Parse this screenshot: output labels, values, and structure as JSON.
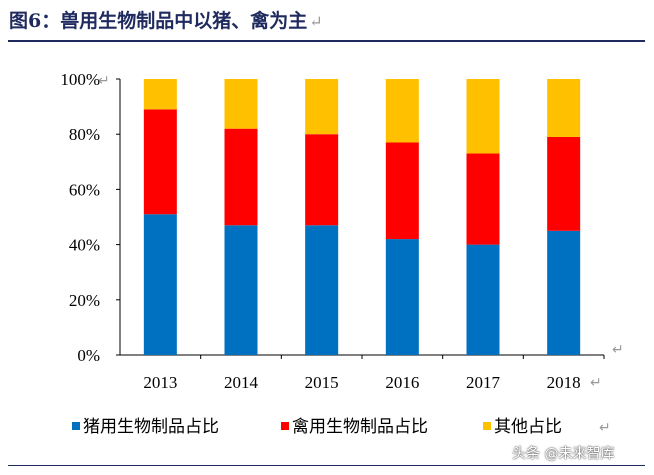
{
  "header": {
    "title": "图6：兽用生物制品中以猪、禽为主",
    "return_mark": "↵"
  },
  "watermark": "头条 @未来智库",
  "chart_data": {
    "type": "bar",
    "stacked": true,
    "title": "图6：兽用生物制品中以猪、禽为主",
    "xlabel": "",
    "ylabel": "",
    "ylim": [
      0,
      100
    ],
    "y_ticks": [
      "0%",
      "20%",
      "40%",
      "60%",
      "80%",
      "100%"
    ],
    "categories": [
      "2013",
      "2014",
      "2015",
      "2016",
      "2017",
      "2018"
    ],
    "series": [
      {
        "name": "猪用生物制品占比",
        "color": "#0070c0",
        "values": [
          51,
          47,
          47,
          42,
          40,
          45
        ]
      },
      {
        "name": "禽用生物制品占比",
        "color": "#ff0000",
        "values": [
          38,
          35,
          33,
          35,
          33,
          34
        ]
      },
      {
        "name": "其他占比",
        "color": "#ffc000",
        "values": [
          11,
          18,
          20,
          23,
          27,
          21
        ]
      }
    ],
    "grid": false,
    "legend_position": "bottom"
  }
}
